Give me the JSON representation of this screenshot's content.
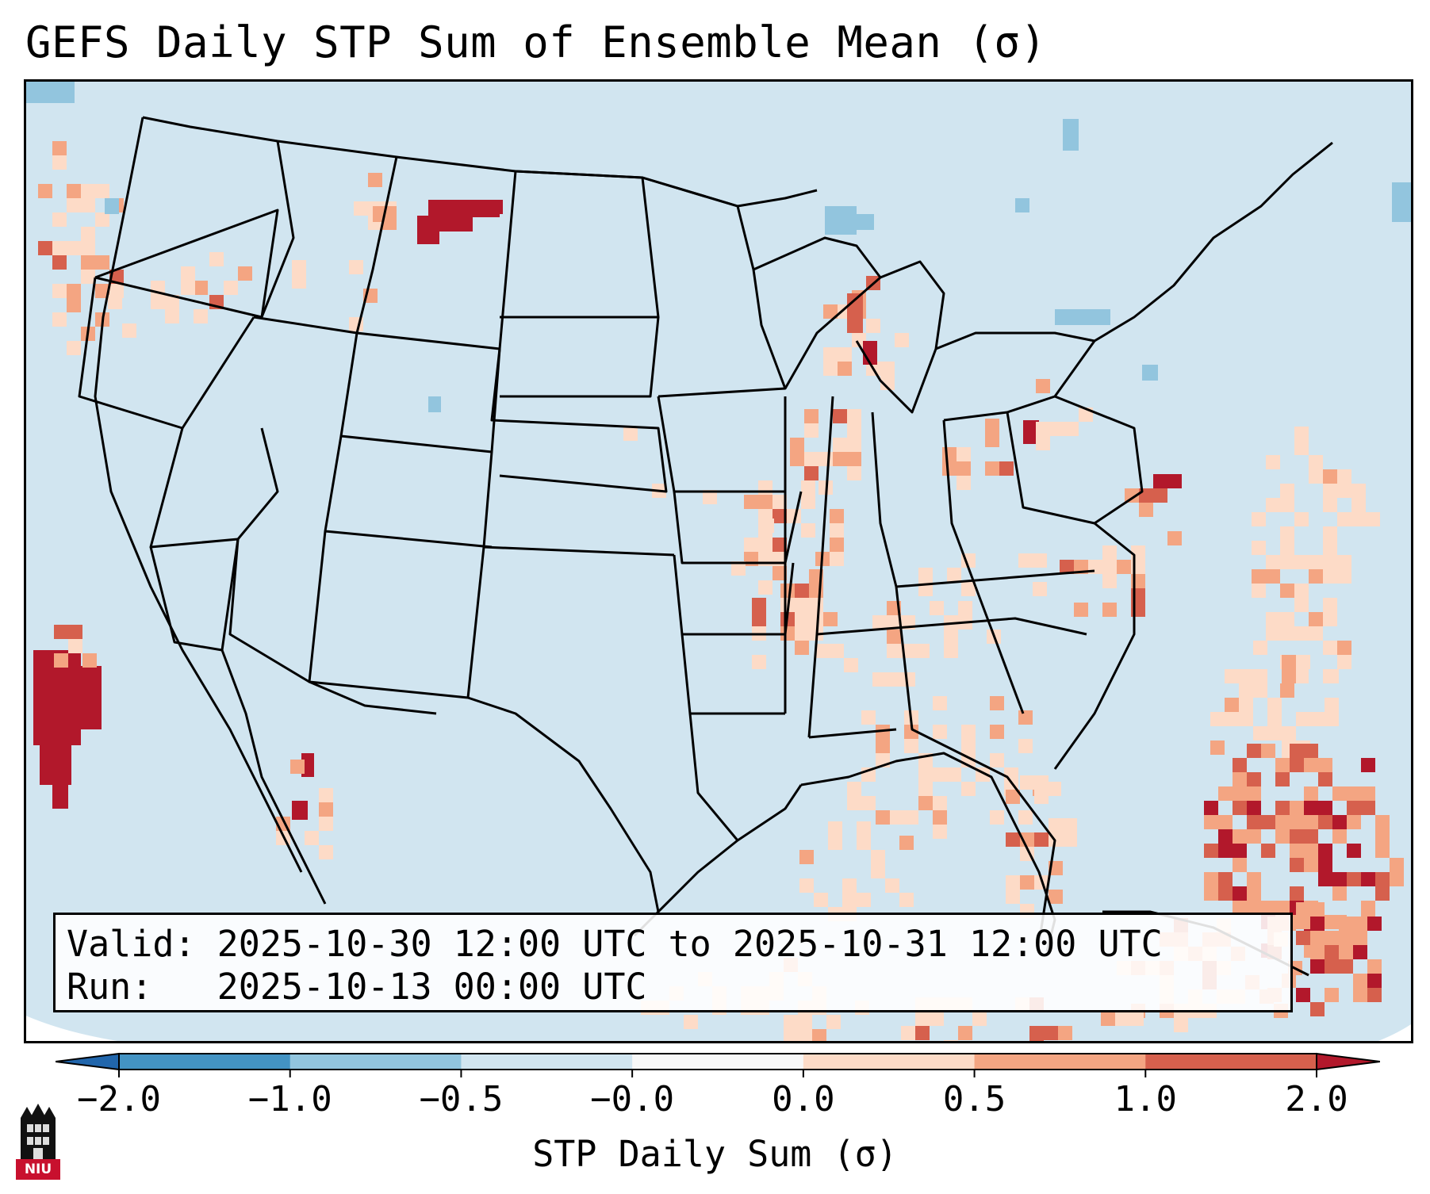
{
  "title": "GEFS Daily STP Sum of Ensemble Mean (σ)",
  "info": {
    "valid_label": "Valid:",
    "valid_value": "2025-10-30 12:00 UTC to 2025-10-31 12:00 UTC",
    "run_label": "Run:",
    "run_value": "2025-10-13 00:00 UTC"
  },
  "colorbar": {
    "label": "STP Daily Sum (σ)",
    "ticks": [
      "−2.0",
      "−1.0",
      "−0.5",
      "−0.0",
      "0.0",
      "0.5",
      "1.0",
      "2.0"
    ],
    "colors": [
      "#2166ac",
      "#4393c3",
      "#92c5de",
      "#d1e5f0",
      "#f7f7f7",
      "#fddbc7",
      "#f4a582",
      "#d6604d",
      "#b2182b"
    ],
    "extend": "both"
  },
  "logo": {
    "icon": "university-tower-icon",
    "text": "NIU"
  },
  "map": {
    "region": "CONUS",
    "background_color": "#d1e5f0",
    "boundaries_color": "#000000"
  }
}
